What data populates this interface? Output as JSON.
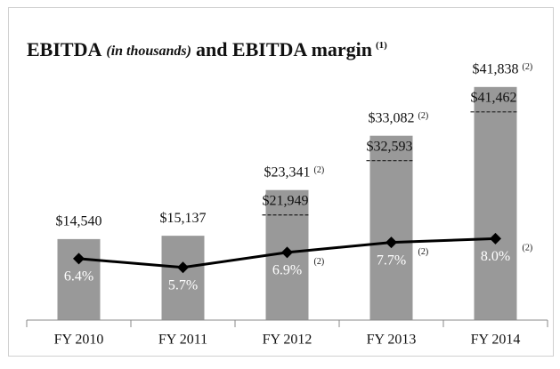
{
  "chart_data": {
    "type": "bar",
    "title": [
      "EBITDA",
      "(in thousands)",
      "and EBITDA margin",
      "(1)"
    ],
    "categories": [
      "FY 2010",
      "FY 2011",
      "FY 2012",
      "FY 2013",
      "FY 2014"
    ],
    "ylim": [
      0,
      45000
    ],
    "y2lim": [
      1.5,
      21.5
    ],
    "series": [
      {
        "type": "bar",
        "color": "#999999",
        "values": [
          14540,
          15137,
          23341,
          33082,
          41838
        ],
        "value_labels": [
          "$14,540",
          "$15,137",
          "$23,341",
          "$33,082",
          "$41,838"
        ],
        "value_notes": [
          null,
          null,
          "(2)",
          "(2)",
          "(2)"
        ],
        "adjusted_values": [
          null,
          null,
          21949,
          32593,
          41462
        ],
        "adjusted_labels": [
          null,
          null,
          "$21,949",
          "$32,593",
          "$41,462"
        ]
      },
      {
        "type": "line",
        "axis": "y2",
        "color": "#000000",
        "values": [
          6.4,
          5.7,
          6.9,
          7.7,
          8.0
        ],
        "value_labels": [
          "6.4%",
          "5.7%",
          "6.9%",
          "7.7%",
          "8.0%"
        ],
        "value_notes": [
          null,
          null,
          "(2)",
          "(2)",
          "(2)"
        ]
      }
    ]
  }
}
